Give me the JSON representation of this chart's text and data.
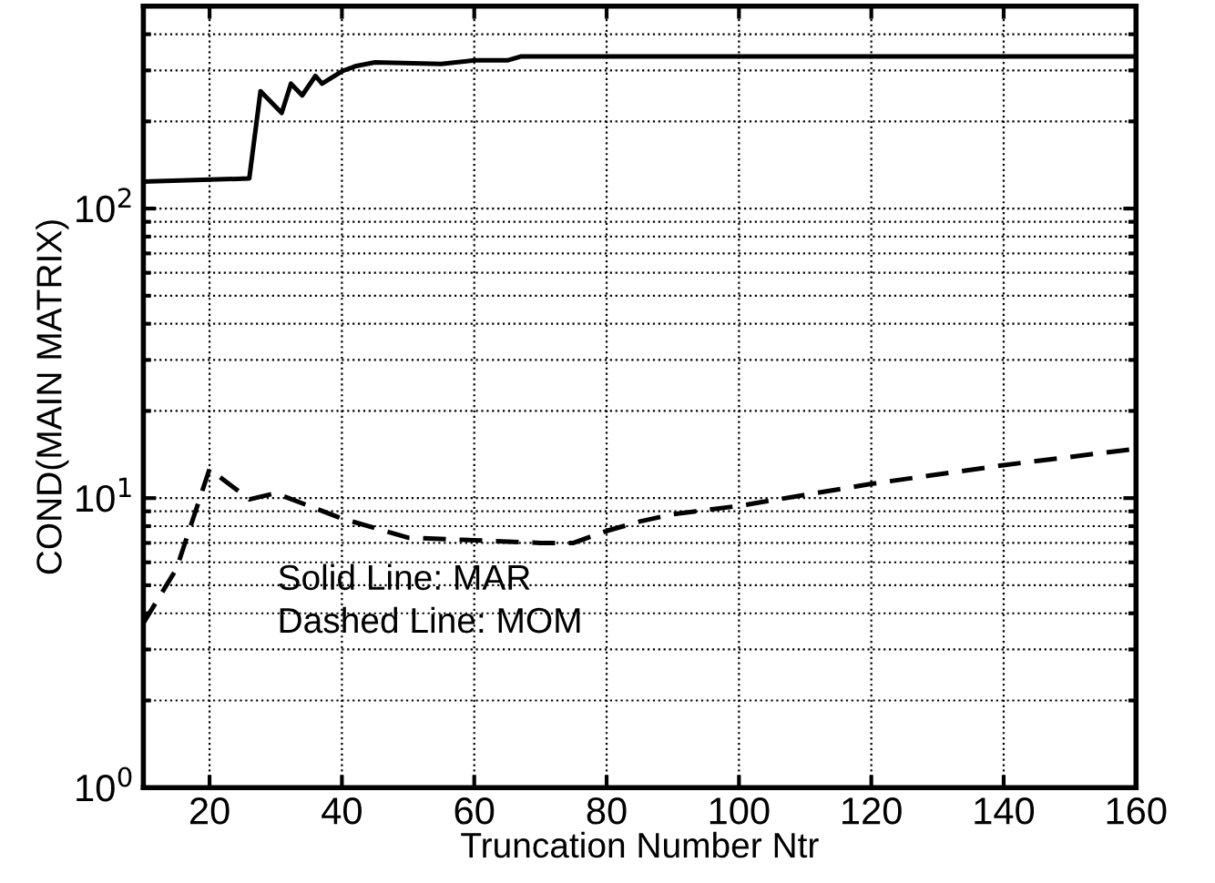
{
  "chart_data": {
    "type": "line",
    "xlabel": "Truncation Number Ntr",
    "ylabel": "COND(MAIN MATRIX)",
    "log": "y",
    "grid": true,
    "legend": false,
    "marker": "none",
    "xlim": [
      10,
      160
    ],
    "xticks": [
      20,
      40,
      60,
      80,
      100,
      120,
      140,
      160
    ],
    "ylim": [
      1,
      500
    ],
    "yticks": [
      {
        "value": 1,
        "label": "10$^{0}$"
      },
      {
        "value": 10,
        "label": "10$^{1}$"
      },
      {
        "value": 100,
        "label": "10$^{2}$"
      }
    ],
    "annotations": [
      "Solid Line: MAR",
      "Dashed Line: MOM"
    ],
    "series": [
      {
        "color": "#000000",
        "line_style": "solid",
        "x": [
          10,
          26,
          27.7,
          30.9,
          32.3,
          34,
          36,
          37,
          40,
          42,
          45,
          55,
          60,
          65,
          67,
          160
        ],
        "values": [
          124,
          127,
          254,
          214,
          270,
          246,
          287,
          270,
          298,
          310,
          320,
          316,
          325,
          325,
          335,
          335
        ]
      },
      {
        "color": "#000000",
        "line_style": "dashed",
        "x": [
          10,
          15,
          20,
          26,
          30,
          40,
          50,
          60,
          70,
          75,
          80,
          85,
          90,
          100,
          120,
          140,
          160
        ],
        "values": [
          3.7,
          5.7,
          12.6,
          9.9,
          10.4,
          8.5,
          7.3,
          7.15,
          7.0,
          7.0,
          7.7,
          8.3,
          8.8,
          9.4,
          11.2,
          13.0,
          14.8
        ]
      }
    ]
  }
}
